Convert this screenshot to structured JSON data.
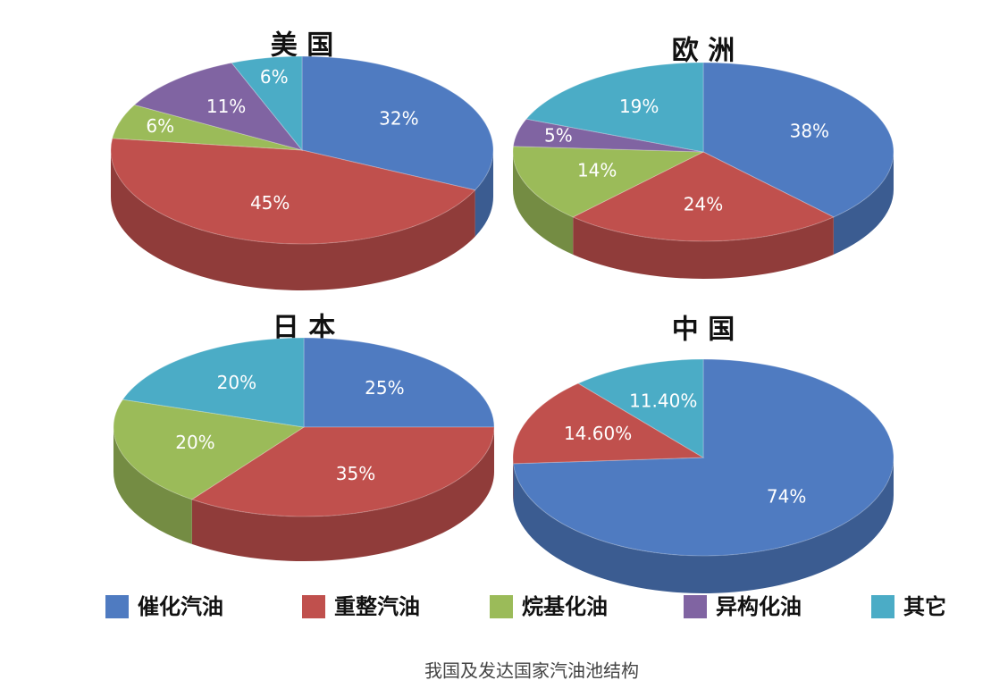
{
  "chart_data": [
    {
      "type": "pie",
      "title": "美 国",
      "categories": [
        "催化汽油",
        "重整汽油",
        "烷基化油",
        "异构化油",
        "其它"
      ],
      "values": [
        32,
        45,
        6,
        11,
        6
      ],
      "value_labels": [
        "32%",
        "45%",
        "6%",
        "11%",
        "6%"
      ]
    },
    {
      "type": "pie",
      "title": "欧 洲",
      "categories": [
        "催化汽油",
        "重整汽油",
        "烷基化油",
        "异构化油",
        "其它"
      ],
      "values": [
        38,
        24,
        14,
        5,
        19
      ],
      "value_labels": [
        "38%",
        "24%",
        "14%",
        "5%",
        "19%"
      ]
    },
    {
      "type": "pie",
      "title": "日 本",
      "categories": [
        "催化汽油",
        "重整汽油",
        "烷基化油",
        "其它"
      ],
      "values": [
        25,
        35,
        20,
        20
      ],
      "value_labels": [
        "25%",
        "35%",
        "20%",
        "20%"
      ]
    },
    {
      "type": "pie",
      "title": "中 国",
      "categories": [
        "催化汽油",
        "重整汽油",
        "其它"
      ],
      "values": [
        74,
        14.6,
        11.4
      ],
      "value_labels": [
        "74%",
        "14.60%",
        "11.40%"
      ]
    }
  ],
  "legend": {
    "labels": [
      "催化汽油",
      "重整汽油",
      "烷基化油",
      "异构化油",
      "其它"
    ],
    "colors": [
      "#4f7bc1",
      "#c0504d",
      "#9bbb59",
      "#8064a2",
      "#4bacc6"
    ]
  },
  "caption": "我国及发达国家汽油池结构"
}
